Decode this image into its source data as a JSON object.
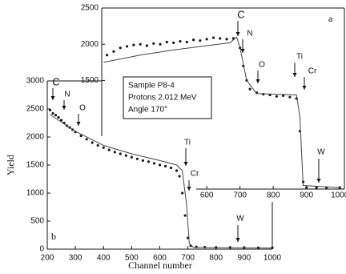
{
  "chart_data": [
    {
      "type": "scatter",
      "panel_label": "b",
      "xlabel": "Channel number",
      "ylabel": "Yield",
      "xlim": [
        200,
        1000
      ],
      "ylim": [
        0,
        3000
      ],
      "xticks": [
        200,
        300,
        400,
        500,
        600,
        700,
        800,
        900,
        1000
      ],
      "yticks": [
        0,
        500,
        1000,
        1500,
        2000,
        2500,
        3000
      ],
      "annotations": [
        "C",
        "N",
        "O",
        "Ti",
        "Cr",
        "W"
      ],
      "series": [
        {
          "type": "scatter",
          "color": "#1a1a1a",
          "x": [
            210,
            220,
            230,
            240,
            250,
            260,
            270,
            280,
            290,
            300,
            320,
            340,
            360,
            380,
            400,
            420,
            440,
            460,
            480,
            500,
            520,
            540,
            560,
            580,
            600,
            620,
            640,
            660,
            670,
            680,
            690,
            700,
            710,
            730,
            760,
            800,
            850,
            900,
            950,
            1000
          ],
          "values": [
            2480,
            2420,
            2390,
            2350,
            2300,
            2250,
            2200,
            2170,
            2130,
            2090,
            2020,
            1960,
            1900,
            1850,
            1810,
            1770,
            1730,
            1700,
            1670,
            1640,
            1610,
            1580,
            1560,
            1530,
            1500,
            1480,
            1450,
            1400,
            1300,
            1000,
            600,
            200,
            60,
            40,
            35,
            30,
            30,
            25,
            25,
            25
          ]
        },
        {
          "type": "line",
          "color": "#444444",
          "x": [
            210,
            300,
            400,
            500,
            600,
            660,
            680,
            695,
            705,
            720,
            1000
          ],
          "values": [
            2400,
            2100,
            1850,
            1700,
            1580,
            1500,
            1400,
            800,
            100,
            30,
            20
          ]
        }
      ]
    },
    {
      "type": "scatter",
      "panel_label": "a",
      "xlim": [
        284,
        1014
      ],
      "ylim": [
        0,
        2500
      ],
      "xticks": [
        600,
        700,
        800,
        900,
        1000
      ],
      "yticks": [
        1500,
        2000,
        2500
      ],
      "annotations": [
        "C",
        "N",
        "O",
        "Ti",
        "Cr",
        "W"
      ],
      "text_box": [
        "Sample P8-4",
        "Protons 2.012 MeV",
        "Angle 170°"
      ],
      "series": [
        {
          "type": "scatter",
          "color": "#1a1a1a",
          "x": [
            300,
            320,
            340,
            360,
            380,
            400,
            420,
            440,
            460,
            480,
            500,
            520,
            540,
            560,
            580,
            600,
            620,
            640,
            660,
            680,
            700,
            710,
            720,
            730,
            750,
            770,
            790,
            810,
            830,
            850,
            870,
            880,
            890,
            900,
            930,
            960,
            1000
          ],
          "values": [
            1850,
            1900,
            1950,
            1970,
            1990,
            2000,
            1980,
            2010,
            2000,
            2030,
            2020,
            2040,
            2030,
            2060,
            2050,
            2070,
            2090,
            2080,
            2070,
            2080,
            1950,
            1700,
            1500,
            1380,
            1330,
            1310,
            1300,
            1280,
            1290,
            1270,
            1250,
            800,
            100,
            20,
            20,
            20,
            20
          ]
        },
        {
          "type": "line",
          "color": "#444444",
          "x": [
            290,
            400,
            500,
            600,
            670,
            690,
            700,
            720,
            750,
            870,
            880,
            890,
            1000
          ],
          "values": [
            1750,
            1850,
            1920,
            1980,
            2020,
            2100,
            1950,
            1500,
            1320,
            1300,
            1000,
            50,
            20
          ]
        }
      ]
    }
  ]
}
